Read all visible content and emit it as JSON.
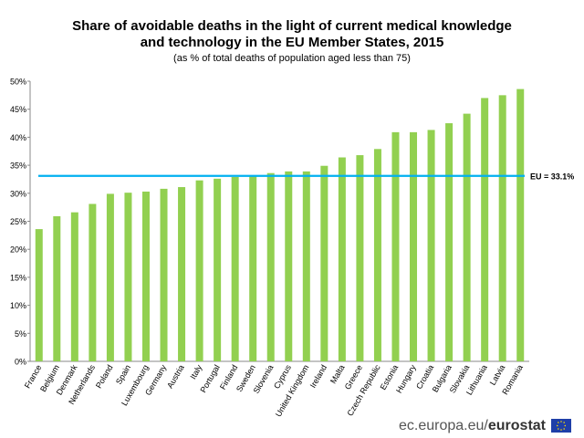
{
  "chart_data": {
    "type": "bar",
    "title_line1": "Share of avoidable deaths in the light of current medical knowledge",
    "title_line2": "and technology in the EU Member States,  2015",
    "subtitle": "(as % of total deaths of population aged less than 75)",
    "categories": [
      "France",
      "Belgium",
      "Denmark",
      "Netherlands",
      "Poland",
      "Spain",
      "Luxembourg",
      "Germany",
      "Austria",
      "Italy",
      "Portugal",
      "Finland",
      "Sweden",
      "Slovenia",
      "Cyprus",
      "United Kingdom",
      "Ireland",
      "Malta",
      "Greece",
      "Czech Republic",
      "Estonia",
      "Hungary",
      "Croatia",
      "Bulgaria",
      "Slovakia",
      "Lithuania",
      "Latvia",
      "Romania"
    ],
    "values": [
      23.6,
      25.9,
      26.6,
      28.1,
      29.9,
      30.1,
      30.3,
      30.8,
      31.1,
      32.3,
      32.6,
      32.9,
      33.1,
      33.6,
      33.9,
      33.9,
      34.9,
      36.4,
      36.8,
      37.9,
      40.9,
      40.9,
      41.3,
      42.5,
      44.2,
      47.0,
      47.5,
      48.6
    ],
    "yticks": [
      "0%",
      "5%",
      "10%",
      "15%",
      "20%",
      "25%",
      "30%",
      "35%",
      "40%",
      "45%",
      "50%"
    ],
    "ylim": [
      0,
      50
    ],
    "reference_line": {
      "label": "EU = 33.1%",
      "value": 33.1
    },
    "bar_color": "#92d050",
    "line_color": "#00b0f0"
  },
  "footer": {
    "domain": "ec.europa.eu/",
    "brand": "eurostat"
  }
}
